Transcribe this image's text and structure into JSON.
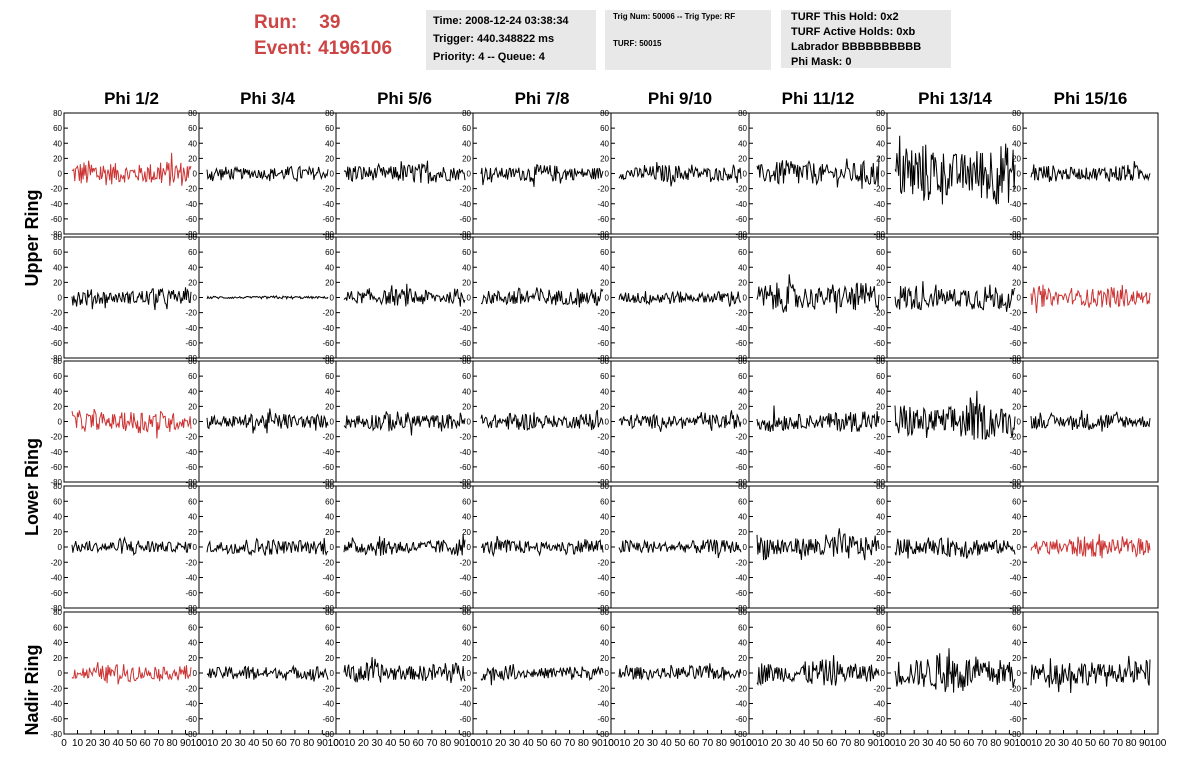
{
  "header": {
    "run_label": "Run:",
    "run_value": "39",
    "event_label": "Event:",
    "event_value": "4196106",
    "time": "Time: 2008-12-24 03:38:34",
    "trigger": "Trigger: 440.348822 ms",
    "priority": "Priority: 4 -- Queue: 4",
    "trig_num": "Trig Num: 50006 -- Trig Type: RF",
    "turf": "TURF: 50015",
    "turf_hold": "TURF This Hold: 0x2",
    "turf_active": "TURF Active Holds: 0xb",
    "labrador": "Labrador BBBBBBBBBB",
    "phi_mask": "Phi Mask: 0"
  },
  "colors": {
    "highlight": "#cc3333",
    "normal": "#000000",
    "title_red": "#cc4444",
    "info_bg": "#e8e8e8"
  },
  "chart_data": {
    "type": "line",
    "columns": [
      "Phi 1/2",
      "Phi 3/4",
      "Phi 5/6",
      "Phi 7/8",
      "Phi 9/10",
      "Phi 11/12",
      "Phi 13/14",
      "Phi 15/16"
    ],
    "ring_labels": [
      "Upper Ring",
      "Lower Ring",
      "Nadir Ring"
    ],
    "ylim": [
      -80,
      80
    ],
    "yticks": [
      -80,
      -60,
      -40,
      -20,
      0,
      20,
      40,
      60,
      80
    ],
    "xlim": [
      0,
      100
    ],
    "xticks": [
      0,
      10,
      20,
      30,
      40,
      50,
      60,
      70,
      80,
      90,
      100
    ],
    "row_amplitudes": [
      [
        18,
        10,
        14,
        12,
        12,
        18,
        42,
        12
      ],
      [
        12,
        2,
        12,
        14,
        10,
        20,
        18,
        14
      ],
      [
        16,
        12,
        14,
        12,
        10,
        14,
        26,
        12
      ],
      [
        10,
        12,
        12,
        10,
        10,
        18,
        14,
        14
      ],
      [
        12,
        10,
        14,
        10,
        10,
        18,
        26,
        18
      ]
    ],
    "highlighted": [
      [
        0,
        0
      ],
      [
        1,
        7
      ],
      [
        2,
        0
      ],
      [
        3,
        7
      ],
      [
        4,
        0
      ]
    ]
  }
}
